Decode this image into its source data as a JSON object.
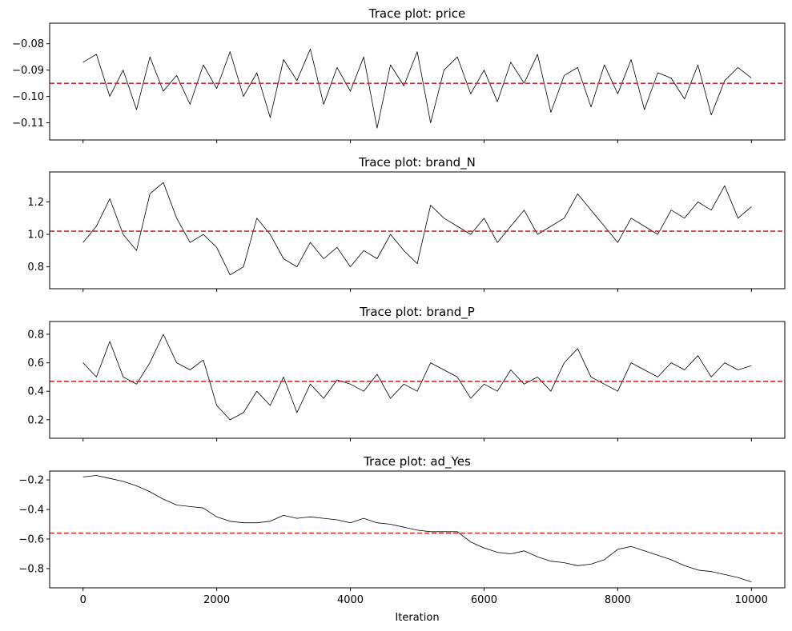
{
  "chart_data": [
    {
      "type": "line",
      "title": "Trace plot: price",
      "xlabel": "",
      "ylabel": "",
      "xlim": [
        -500,
        10500
      ],
      "ylim": [
        -0.1165,
        -0.0722
      ],
      "yticks": [
        -0.08,
        -0.09,
        -0.1,
        -0.11
      ],
      "ytick_labels": [
        "−0.08",
        "−0.09",
        "−0.10",
        "−0.11"
      ],
      "xticks": [
        0,
        2000,
        4000,
        6000,
        8000,
        10000
      ],
      "show_xtick_labels": false,
      "reference_line": {
        "y": -0.095,
        "color": "#d62728",
        "style": "dashed"
      },
      "series": [
        {
          "color": "#000000",
          "x": [
            0,
            200,
            400,
            600,
            800,
            1000,
            1200,
            1400,
            1600,
            1800,
            2000,
            2200,
            2400,
            2600,
            2800,
            3000,
            3200,
            3400,
            3600,
            3800,
            4000,
            4200,
            4400,
            4600,
            4800,
            5000,
            5200,
            5400,
            5600,
            5800,
            6000,
            6200,
            6400,
            6600,
            6800,
            7000,
            7200,
            7400,
            7600,
            7800,
            8000,
            8200,
            8400,
            8600,
            8800,
            9000,
            9200,
            9400,
            9600,
            9800,
            10000
          ],
          "values": [
            -0.087,
            -0.084,
            -0.1,
            -0.09,
            -0.105,
            -0.085,
            -0.098,
            -0.092,
            -0.103,
            -0.088,
            -0.097,
            -0.083,
            -0.1,
            -0.091,
            -0.108,
            -0.086,
            -0.094,
            -0.082,
            -0.103,
            -0.089,
            -0.098,
            -0.085,
            -0.112,
            -0.088,
            -0.096,
            -0.083,
            -0.11,
            -0.09,
            -0.085,
            -0.099,
            -0.09,
            -0.102,
            -0.087,
            -0.095,
            -0.084,
            -0.106,
            -0.092,
            -0.089,
            -0.104,
            -0.088,
            -0.099,
            -0.086,
            -0.105,
            -0.091,
            -0.093,
            -0.101,
            -0.088,
            -0.107,
            -0.094,
            -0.089,
            -0.093
          ]
        }
      ]
    },
    {
      "type": "line",
      "title": "Trace plot: brand_N",
      "xlabel": "",
      "ylabel": "",
      "xlim": [
        -500,
        10500
      ],
      "ylim": [
        0.665,
        1.385
      ],
      "yticks": [
        0.8,
        1.0,
        1.2
      ],
      "ytick_labels": [
        "0.8",
        "1.0",
        "1.2"
      ],
      "xticks": [
        0,
        2000,
        4000,
        6000,
        8000,
        10000
      ],
      "show_xtick_labels": false,
      "reference_line": {
        "y": 1.02,
        "color": "#d62728",
        "style": "dashed"
      },
      "series": [
        {
          "color": "#000000",
          "x": [
            0,
            200,
            400,
            600,
            800,
            1000,
            1200,
            1400,
            1600,
            1800,
            2000,
            2200,
            2400,
            2600,
            2800,
            3000,
            3200,
            3400,
            3600,
            3800,
            4000,
            4200,
            4400,
            4600,
            4800,
            5000,
            5200,
            5400,
            5600,
            5800,
            6000,
            6200,
            6400,
            6600,
            6800,
            7000,
            7200,
            7400,
            7600,
            7800,
            8000,
            8200,
            8400,
            8600,
            8800,
            9000,
            9200,
            9400,
            9600,
            9800,
            10000
          ],
          "values": [
            0.95,
            1.05,
            1.22,
            1.0,
            0.9,
            1.25,
            1.32,
            1.1,
            0.95,
            1.0,
            0.92,
            0.75,
            0.8,
            1.1,
            1.0,
            0.85,
            0.8,
            0.95,
            0.85,
            0.92,
            0.8,
            0.9,
            0.85,
            1.0,
            0.9,
            0.82,
            1.18,
            1.1,
            1.05,
            1.0,
            1.1,
            0.95,
            1.05,
            1.15,
            1.0,
            1.05,
            1.1,
            1.25,
            1.15,
            1.05,
            0.95,
            1.1,
            1.05,
            1.0,
            1.15,
            1.1,
            1.2,
            1.15,
            1.3,
            1.1,
            1.17
          ]
        }
      ]
    },
    {
      "type": "line",
      "title": "Trace plot: brand_P",
      "xlabel": "",
      "ylabel": "",
      "xlim": [
        -500,
        10500
      ],
      "ylim": [
        0.07,
        0.89
      ],
      "yticks": [
        0.2,
        0.4,
        0.6,
        0.8
      ],
      "ytick_labels": [
        "0.2",
        "0.4",
        "0.6",
        "0.8"
      ],
      "xticks": [
        0,
        2000,
        4000,
        6000,
        8000,
        10000
      ],
      "show_xtick_labels": false,
      "reference_line": {
        "y": 0.47,
        "color": "#d62728",
        "style": "dashed"
      },
      "series": [
        {
          "color": "#000000",
          "x": [
            0,
            200,
            400,
            600,
            800,
            1000,
            1200,
            1400,
            1600,
            1800,
            2000,
            2200,
            2400,
            2600,
            2800,
            3000,
            3200,
            3400,
            3600,
            3800,
            4000,
            4200,
            4400,
            4600,
            4800,
            5000,
            5200,
            5400,
            5600,
            5800,
            6000,
            6200,
            6400,
            6600,
            6800,
            7000,
            7200,
            7400,
            7600,
            7800,
            8000,
            8200,
            8400,
            8600,
            8800,
            9000,
            9200,
            9400,
            9600,
            9800,
            10000
          ],
          "values": [
            0.6,
            0.5,
            0.75,
            0.5,
            0.45,
            0.6,
            0.8,
            0.6,
            0.55,
            0.62,
            0.3,
            0.2,
            0.25,
            0.4,
            0.3,
            0.5,
            0.25,
            0.45,
            0.35,
            0.48,
            0.45,
            0.4,
            0.52,
            0.35,
            0.45,
            0.4,
            0.6,
            0.55,
            0.5,
            0.35,
            0.45,
            0.4,
            0.55,
            0.45,
            0.5,
            0.4,
            0.6,
            0.7,
            0.5,
            0.45,
            0.4,
            0.6,
            0.55,
            0.5,
            0.6,
            0.55,
            0.65,
            0.5,
            0.6,
            0.55,
            0.58
          ]
        }
      ]
    },
    {
      "type": "line",
      "title": "Trace plot: ad_Yes",
      "xlabel": "Iteration",
      "ylabel": "",
      "xlim": [
        -500,
        10500
      ],
      "ylim": [
        -0.93,
        -0.14
      ],
      "yticks": [
        -0.2,
        -0.4,
        -0.6,
        -0.8
      ],
      "ytick_labels": [
        "−0.2",
        "−0.4",
        "−0.6",
        "−0.8"
      ],
      "xticks": [
        0,
        2000,
        4000,
        6000,
        8000,
        10000
      ],
      "xtick_labels": [
        "0",
        "2000",
        "4000",
        "6000",
        "8000",
        "10000"
      ],
      "show_xtick_labels": true,
      "reference_line": {
        "y": -0.56,
        "color": "#d62728",
        "style": "dashed"
      },
      "series": [
        {
          "color": "#000000",
          "x": [
            0,
            200,
            400,
            600,
            800,
            1000,
            1200,
            1400,
            1600,
            1800,
            2000,
            2200,
            2400,
            2600,
            2800,
            3000,
            3200,
            3400,
            3600,
            3800,
            4000,
            4200,
            4400,
            4600,
            4800,
            5000,
            5200,
            5400,
            5600,
            5800,
            6000,
            6200,
            6400,
            6600,
            6800,
            7000,
            7200,
            7400,
            7600,
            7800,
            8000,
            8200,
            8400,
            8600,
            8800,
            9000,
            9200,
            9400,
            9600,
            9800,
            10000
          ],
          "values": [
            -0.18,
            -0.17,
            -0.19,
            -0.21,
            -0.24,
            -0.28,
            -0.33,
            -0.37,
            -0.38,
            -0.39,
            -0.45,
            -0.48,
            -0.49,
            -0.49,
            -0.48,
            -0.44,
            -0.46,
            -0.45,
            -0.46,
            -0.47,
            -0.49,
            -0.46,
            -0.49,
            -0.5,
            -0.52,
            -0.54,
            -0.55,
            -0.55,
            -0.55,
            -0.62,
            -0.66,
            -0.69,
            -0.7,
            -0.68,
            -0.72,
            -0.75,
            -0.76,
            -0.78,
            -0.77,
            -0.74,
            -0.67,
            -0.65,
            -0.68,
            -0.71,
            -0.74,
            -0.78,
            -0.81,
            -0.82,
            -0.84,
            -0.86,
            -0.89
          ]
        }
      ]
    }
  ]
}
